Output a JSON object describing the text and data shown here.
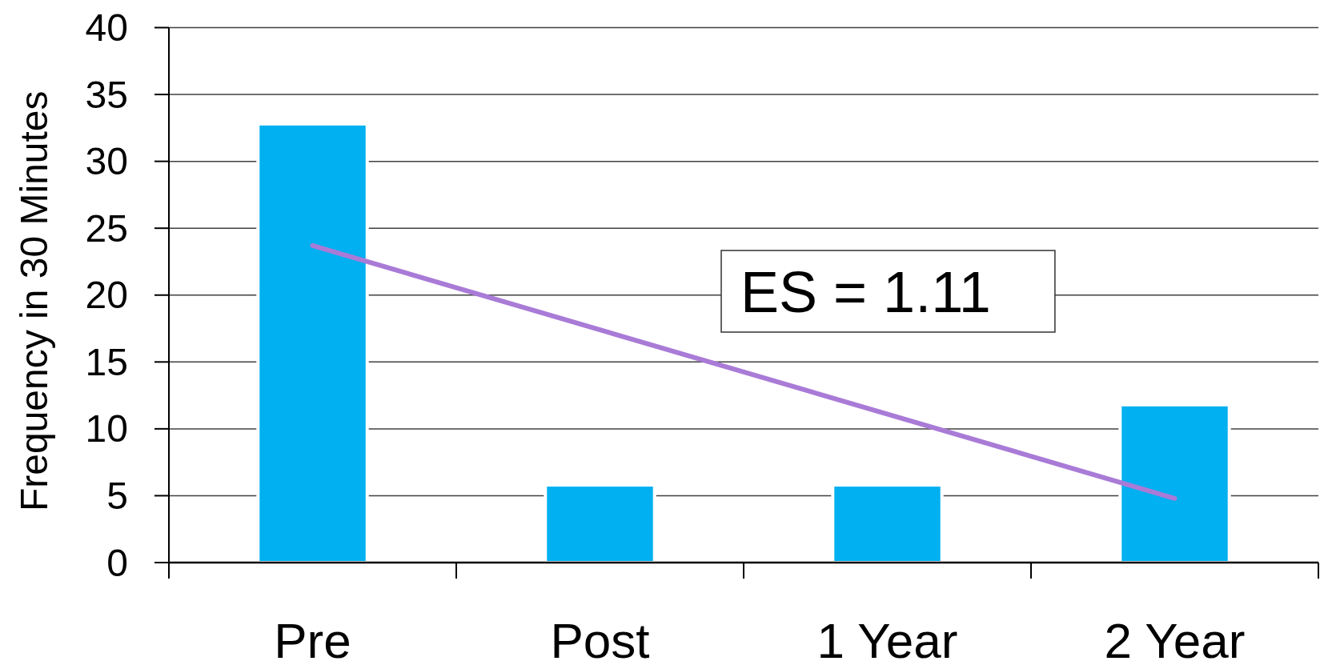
{
  "chart_data": {
    "type": "bar",
    "ylabel": "Frequency in 30 Minutes",
    "categories": [
      "Pre",
      "Post",
      "1 Year",
      "2 Year"
    ],
    "series": [
      {
        "color": "#00b0f0",
        "values": [
          32.8,
          5.8,
          5.8,
          11.8
        ]
      },
      {
        "type": "line",
        "color": "#a97bd7",
        "x": [
          "Pre",
          "2 Year"
        ],
        "values": [
          23.7,
          4.8
        ]
      }
    ],
    "ylim": [
      0,
      40
    ],
    "yticks": [
      0,
      5,
      10,
      15,
      20,
      25,
      30,
      35,
      40
    ],
    "grid": "y",
    "annotations": [
      "ES = 1.11"
    ]
  }
}
